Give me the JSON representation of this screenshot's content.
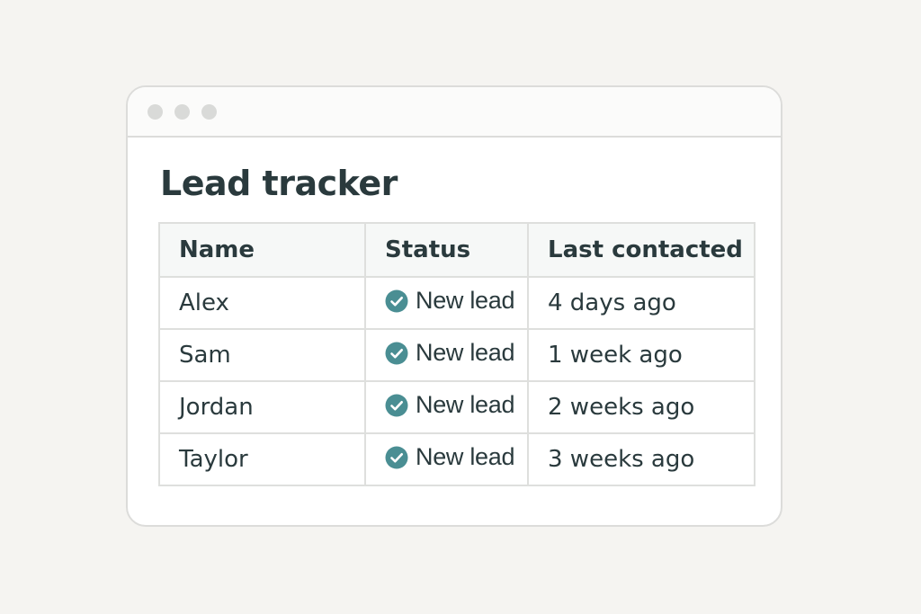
{
  "window": {
    "controls": [
      "control-dot",
      "control-dot",
      "control-dot"
    ]
  },
  "page": {
    "title": "Lead tracker"
  },
  "table": {
    "columns": [
      "Name",
      "Status",
      "Last contacted"
    ],
    "rows": [
      {
        "name": "Alex",
        "status": "New lead",
        "last_contacted": "4 days ago"
      },
      {
        "name": "Sam",
        "status": "New lead",
        "last_contacted": "1 week ago"
      },
      {
        "name": "Jordan",
        "status": "New lead",
        "last_contacted": "2 weeks ago"
      },
      {
        "name": "Taylor",
        "status": "New lead",
        "last_contacted": "3 weeks ago"
      }
    ]
  },
  "colors": {
    "accent": "#4a8e93",
    "text": "#2a3a3d",
    "border": "#dedfdd",
    "background": "#f5f4f1"
  },
  "icons": {
    "status": "check-circle-icon"
  }
}
